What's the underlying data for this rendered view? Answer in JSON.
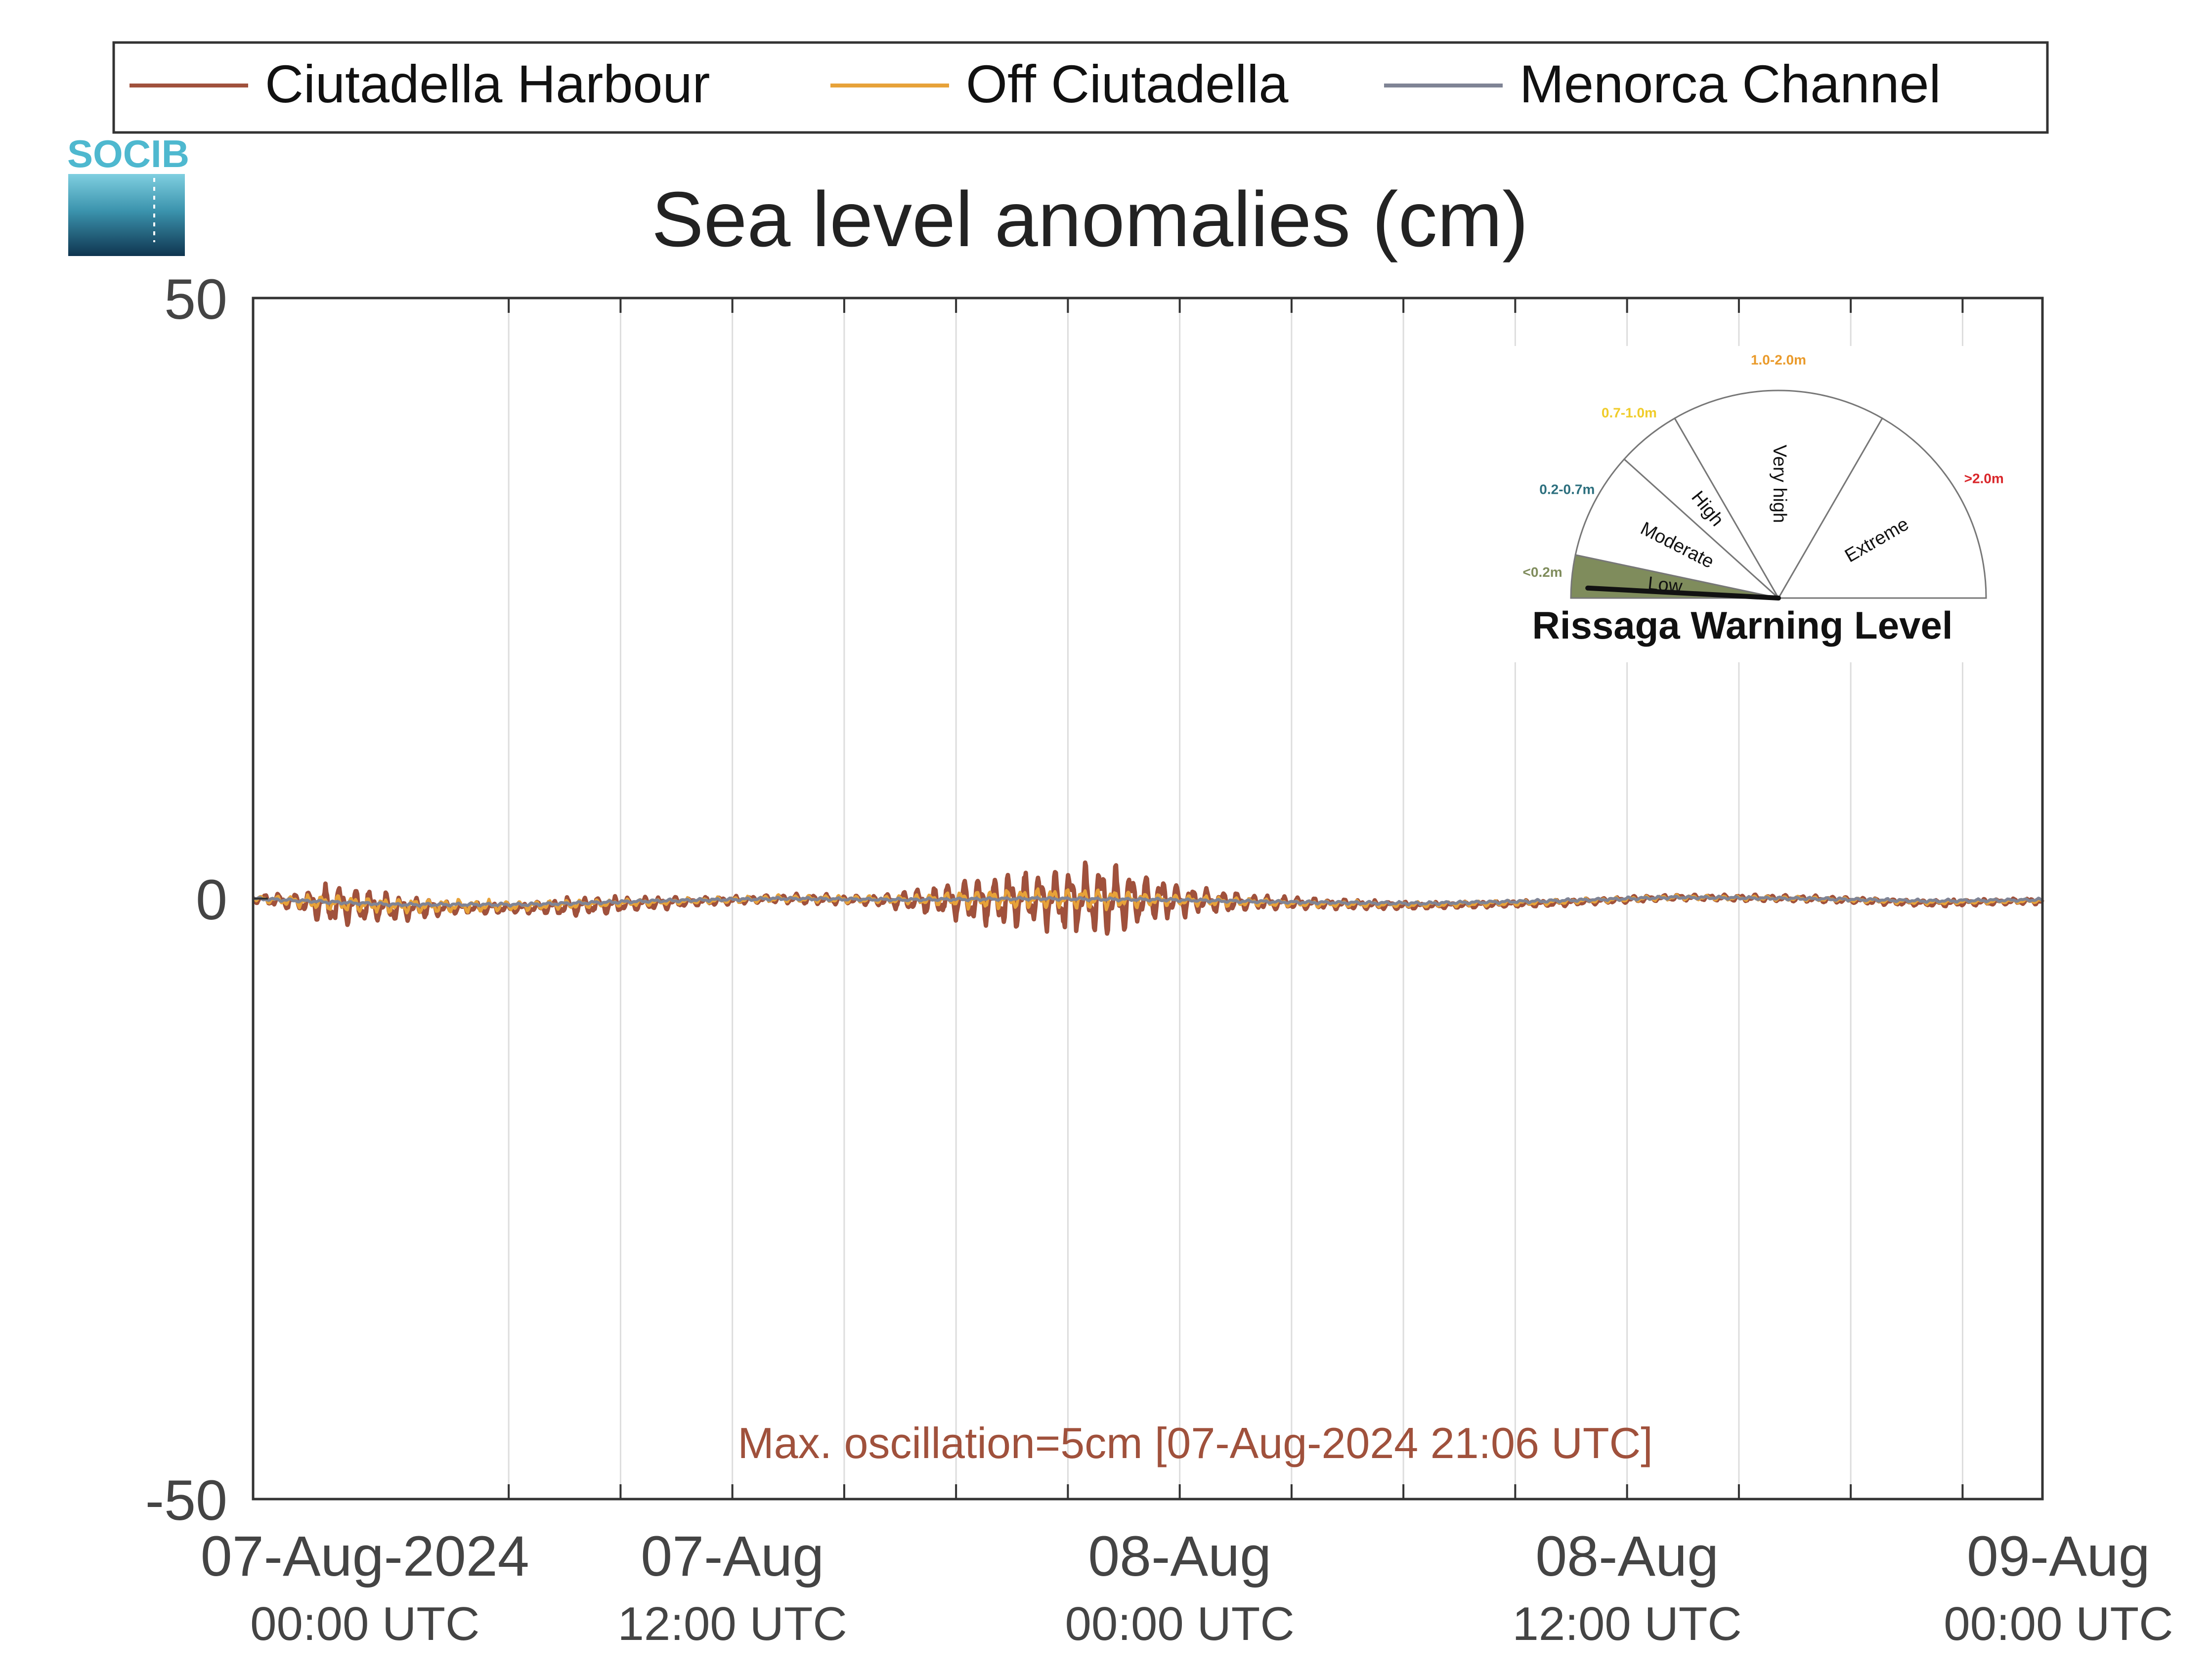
{
  "chart_data": {
    "type": "line",
    "title": "Sea level anomalies (cm)",
    "xlabel": "",
    "ylabel": "",
    "ylim": [
      -50,
      50
    ],
    "yticks": [
      {
        "value": 50,
        "label": "50"
      },
      {
        "value": 0,
        "label": "0"
      },
      {
        "value": -50,
        "label": "-50"
      }
    ],
    "xlim_hours": [
      -4.5,
      51.5
    ],
    "grid": true,
    "grid_hours": [
      3.5,
      7,
      10.5,
      14,
      17.5,
      21,
      24.5,
      28,
      31.5,
      35,
      38.5,
      42,
      45.5,
      49
    ],
    "xticks": [
      {
        "hours": -1,
        "date": "07-Aug-2024",
        "time": "00:00 UTC"
      },
      {
        "hours": 10.5,
        "date": "07-Aug",
        "time": "12:00 UTC"
      },
      {
        "hours": 24.5,
        "date": "08-Aug",
        "time": "00:00 UTC"
      },
      {
        "hours": 38.5,
        "date": "08-Aug",
        "time": "12:00 UTC"
      },
      {
        "hours": 52,
        "date": "09-Aug",
        "time": "00:00 UTC"
      }
    ],
    "legend_position": "top",
    "series": [
      {
        "name": "Ciutadella Harbour",
        "color": "#a0513c",
        "envelope": [
          [
            -4.5,
            0.4
          ],
          [
            -3,
            1.0
          ],
          [
            -2,
            2.2
          ],
          [
            -1,
            1.8
          ],
          [
            0,
            1.2
          ],
          [
            1,
            1.0
          ],
          [
            2,
            0.5
          ],
          [
            3,
            0.6
          ],
          [
            4,
            0.5
          ],
          [
            5,
            0.9
          ],
          [
            6,
            0.9
          ],
          [
            7,
            0.8
          ],
          [
            8,
            0.6
          ],
          [
            9,
            0.5
          ],
          [
            10,
            0.4
          ],
          [
            11,
            0.4
          ],
          [
            12,
            0.4
          ],
          [
            13,
            0.5
          ],
          [
            14,
            0.4
          ],
          [
            15,
            0.5
          ],
          [
            16,
            1.0
          ],
          [
            17,
            1.4
          ],
          [
            18,
            2.2
          ],
          [
            19,
            2.6
          ],
          [
            20,
            2.6
          ],
          [
            21,
            3.2
          ],
          [
            22,
            3.5
          ],
          [
            23,
            3.0
          ],
          [
            24,
            2.2
          ],
          [
            25,
            1.3
          ],
          [
            26,
            1.1
          ],
          [
            27,
            0.7
          ],
          [
            28,
            0.6
          ],
          [
            29,
            0.5
          ],
          [
            30,
            0.5
          ],
          [
            31,
            0.4
          ],
          [
            32,
            0.3
          ],
          [
            33,
            0.3
          ],
          [
            34,
            0.3
          ],
          [
            35,
            0.3
          ],
          [
            36,
            0.3
          ],
          [
            37,
            0.3
          ],
          [
            38,
            0.3
          ],
          [
            39,
            0.3
          ],
          [
            40,
            0.3
          ],
          [
            41,
            0.3
          ],
          [
            42,
            0.3
          ],
          [
            43,
            0.3
          ],
          [
            44,
            0.3
          ],
          [
            45,
            0.3
          ],
          [
            46,
            0.3
          ],
          [
            47,
            0.3
          ],
          [
            48,
            0.3
          ],
          [
            49,
            0.3
          ],
          [
            51.5,
            0.3
          ]
        ],
        "baseline": [
          [
            -4.5,
            0
          ],
          [
            -2,
            -0.5
          ],
          [
            0,
            -0.8
          ],
          [
            4,
            -0.8
          ],
          [
            8,
            -0.4
          ],
          [
            12,
            0
          ],
          [
            16,
            -0.2
          ],
          [
            20,
            -0.1
          ],
          [
            24,
            -0.1
          ],
          [
            28,
            -0.4
          ],
          [
            32,
            -0.6
          ],
          [
            36,
            -0.4
          ],
          [
            40,
            0.1
          ],
          [
            44,
            0
          ],
          [
            48,
            -0.4
          ],
          [
            51.5,
            -0.2
          ]
        ]
      },
      {
        "name": "Off Ciutadella",
        "color": "#e7a239",
        "envelope": [
          [
            -4.5,
            0.3
          ],
          [
            -2,
            0.8
          ],
          [
            0,
            0.8
          ],
          [
            4,
            0.5
          ],
          [
            8,
            0.3
          ],
          [
            16,
            0.4
          ],
          [
            18,
            0.9
          ],
          [
            20,
            1.0
          ],
          [
            22,
            1.0
          ],
          [
            24,
            0.6
          ],
          [
            27,
            0.4
          ],
          [
            30,
            0.3
          ],
          [
            51.5,
            0.2
          ]
        ],
        "baseline": [
          [
            -4.5,
            0
          ],
          [
            -2,
            -0.4
          ],
          [
            0,
            -0.6
          ],
          [
            4,
            -0.6
          ],
          [
            8,
            -0.3
          ],
          [
            12,
            0
          ],
          [
            16,
            -0.1
          ],
          [
            20,
            0
          ],
          [
            24,
            -0.1
          ],
          [
            28,
            -0.4
          ],
          [
            32,
            -0.5
          ],
          [
            36,
            -0.3
          ],
          [
            40,
            0.1
          ],
          [
            44,
            0
          ],
          [
            48,
            -0.3
          ],
          [
            51.5,
            -0.2
          ]
        ]
      },
      {
        "name": "Menorca Channel",
        "color": "#7f8495",
        "envelope": [
          [
            -4.5,
            0.15
          ],
          [
            51.5,
            0.15
          ]
        ],
        "baseline": [
          [
            -4.5,
            0
          ],
          [
            -2,
            -0.3
          ],
          [
            0,
            -0.5
          ],
          [
            4,
            -0.5
          ],
          [
            8,
            -0.2
          ],
          [
            12,
            0
          ],
          [
            16,
            -0.1
          ],
          [
            20,
            0
          ],
          [
            24,
            -0.1
          ],
          [
            28,
            -0.3
          ],
          [
            32,
            -0.4
          ],
          [
            36,
            -0.2
          ],
          [
            40,
            0.1
          ],
          [
            44,
            0
          ],
          [
            48,
            -0.2
          ],
          [
            51.5,
            -0.1
          ]
        ]
      }
    ],
    "annotation": "Max. oscillation=5cm [07-Aug-2024 21:06 UTC]",
    "annotation_color": "#a0513c"
  },
  "logo": {
    "text": "SOCIB"
  },
  "gauge": {
    "title": "Rissaga Warning Level",
    "needle_value": 0.05,
    "segments": [
      {
        "label": "Low",
        "range": "<0.2m",
        "color": "#7f8c5c",
        "range_color": "#7f8c5c",
        "active": true
      },
      {
        "label": "Moderate",
        "range": "0.2-0.7m",
        "color": "#ffffff",
        "range_color": "#2c6f7e",
        "active": false
      },
      {
        "label": "High",
        "range": "0.7-1.0m",
        "color": "#ffffff",
        "range_color": "#f0cc2a",
        "active": false
      },
      {
        "label": "Very high",
        "range": "1.0-2.0m",
        "color": "#ffffff",
        "range_color": "#ea9a2a",
        "active": false
      },
      {
        "label": "Extreme",
        "range": ">2.0m",
        "color": "#ffffff",
        "range_color": "#d9262a",
        "active": false
      }
    ]
  }
}
